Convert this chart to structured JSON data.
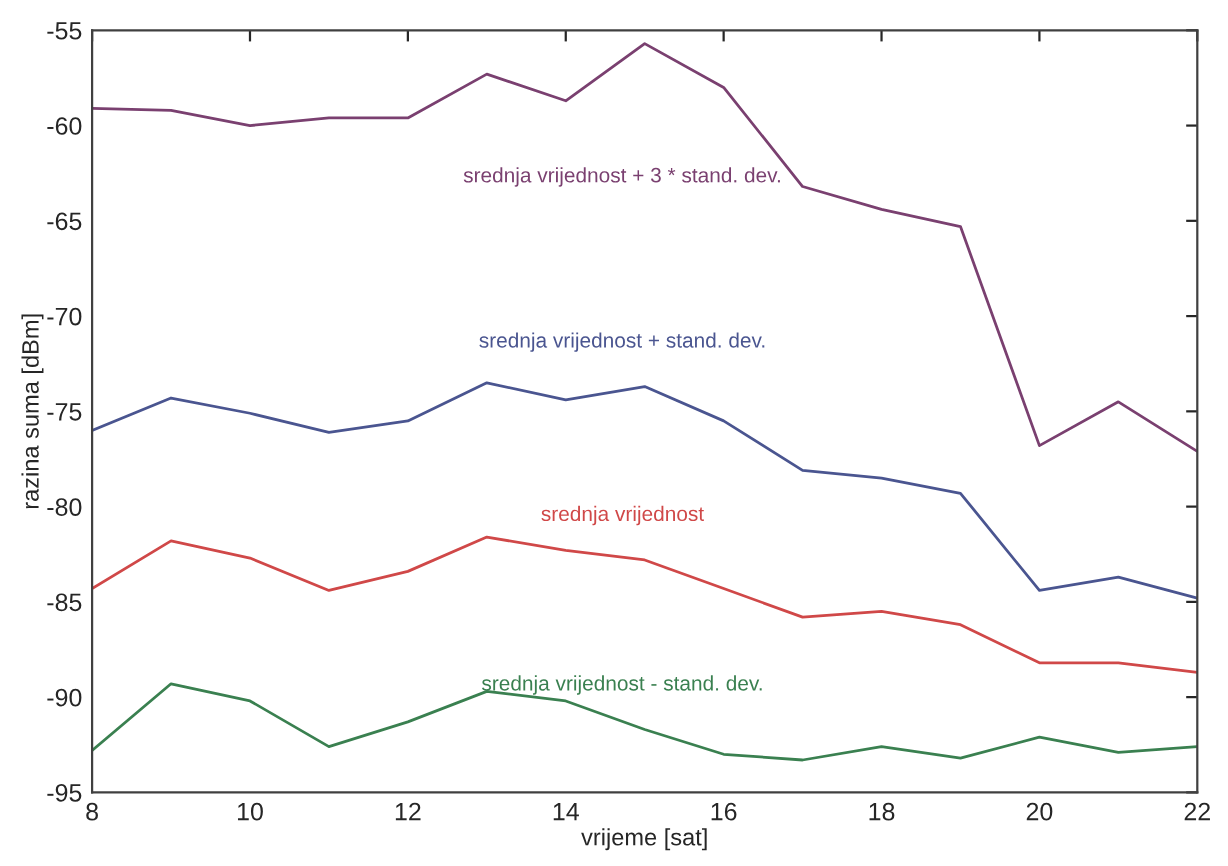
{
  "chart_data": {
    "type": "line",
    "xlabel": "vrijeme [sat]",
    "ylabel": "razina suma [dBm]",
    "x": [
      8,
      9,
      10,
      11,
      12,
      13,
      14,
      15,
      16,
      17,
      18,
      19,
      20,
      21,
      22
    ],
    "xlim": [
      8,
      22
    ],
    "xticks": [
      8,
      10,
      12,
      14,
      16,
      18,
      20,
      22
    ],
    "ylim": [
      -95,
      -55
    ],
    "yticks": [
      -95,
      -90,
      -85,
      -80,
      -75,
      -70,
      -65,
      -60,
      -55
    ],
    "grid": false,
    "legend": false,
    "marker": "none",
    "line_style": "solid",
    "series": [
      {
        "name": "srednja vrijednost + 3 * stand. dev.",
        "color": "#7a4070",
        "values": [
          -59.1,
          -59.2,
          -60,
          -59.6,
          -59.6,
          -57.3,
          -58.7,
          -55.7,
          -58,
          -63.2,
          -64.4,
          -65.3,
          -76.8,
          -74.5,
          -77.1
        ]
      },
      {
        "name": "srednja vrijednost + stand. dev.",
        "color": "#4a5590",
        "values": [
          -76,
          -74.3,
          -75.1,
          -76.1,
          -75.5,
          -73.5,
          -74.4,
          -73.7,
          -75.5,
          -78.1,
          -78.5,
          -79.3,
          -84.4,
          -83.7,
          -84.8
        ]
      },
      {
        "name": "srednja vrijednost",
        "color": "#d04848",
        "values": [
          -84.3,
          -81.8,
          -82.7,
          -84.4,
          -83.4,
          -81.6,
          -82.3,
          -82.8,
          -84.3,
          -85.8,
          -85.5,
          -86.2,
          -88.2,
          -88.2,
          -88.7
        ]
      },
      {
        "name": "srednja vrijednost - stand. dev.",
        "color": "#3a8050",
        "values": [
          -92.8,
          -89.3,
          -90.2,
          -92.6,
          -91.3,
          -89.7,
          -90.2,
          -91.7,
          -93,
          -93.3,
          -92.6,
          -93.2,
          -92.1,
          -92.9,
          -92.6
        ]
      }
    ]
  }
}
